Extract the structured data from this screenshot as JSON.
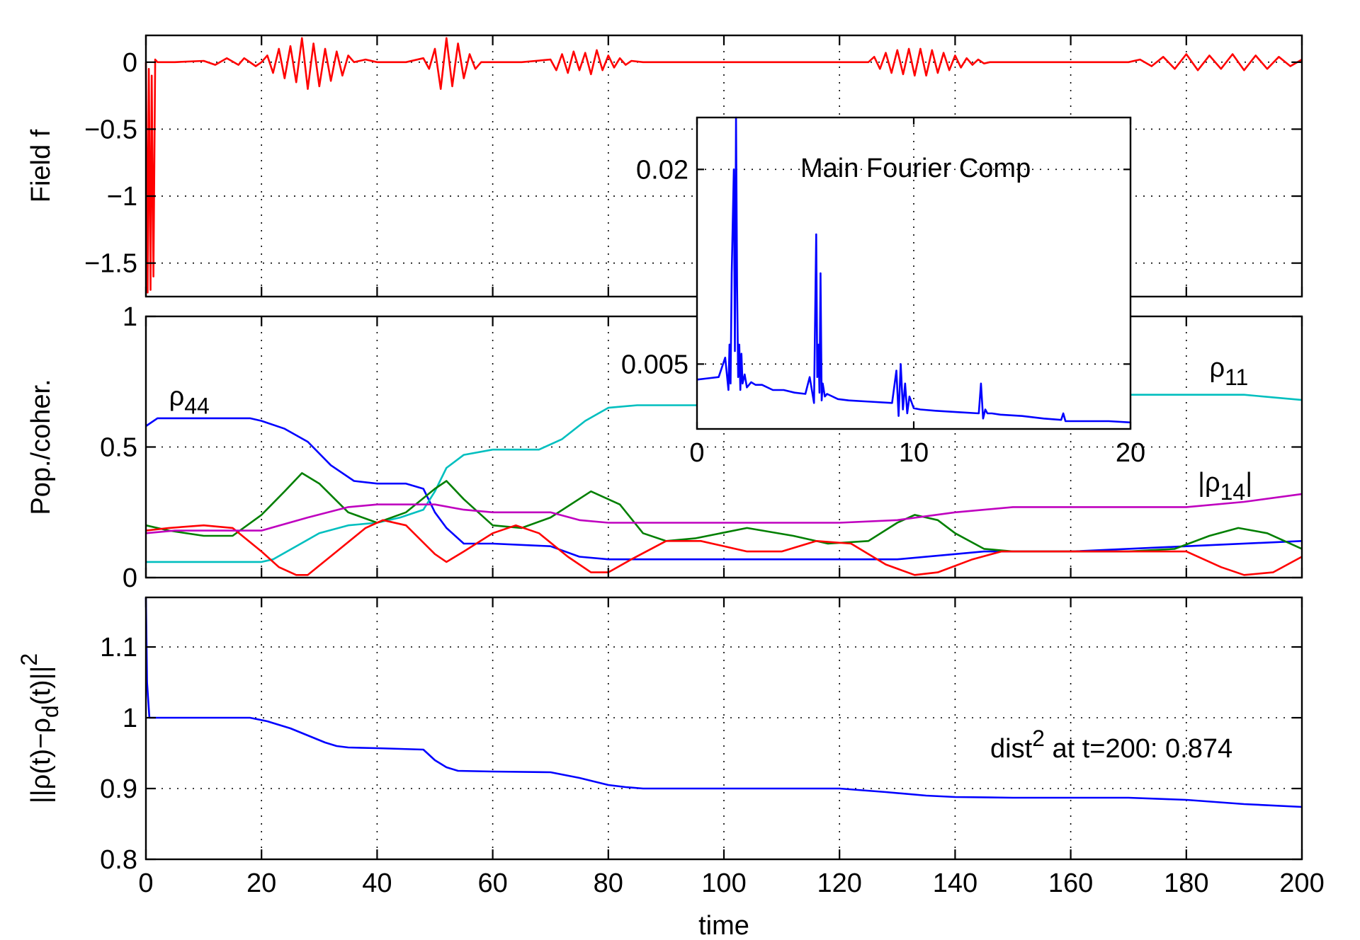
{
  "chart_data": [
    {
      "id": "field",
      "type": "line",
      "ylabel": "Field f",
      "xlim": [
        0,
        200
      ],
      "ylim": [
        -1.75,
        0.2
      ],
      "yticks": [
        0,
        -0.5,
        -1,
        -1.5
      ],
      "ytick_labels": [
        "0",
        "−0.5",
        "−1",
        "−1.5"
      ],
      "xticks": [
        0,
        20,
        40,
        60,
        80,
        100,
        120,
        140,
        160,
        180,
        200
      ],
      "grid": true,
      "series": [
        {
          "color": "#ff0000",
          "x": [
            0,
            0.3,
            0.5,
            0.8,
            1.0,
            1.3,
            1.6,
            2.0,
            5,
            10,
            12,
            14,
            16,
            17,
            19,
            20,
            21,
            22,
            23,
            24,
            25,
            26,
            27,
            28,
            29,
            30,
            31,
            32,
            33,
            34,
            35,
            36,
            38,
            40,
            45,
            48,
            49,
            50,
            51,
            52,
            53,
            54,
            55,
            56,
            57,
            58,
            60,
            65,
            70,
            71,
            72,
            73,
            74,
            75,
            76,
            77,
            78,
            79,
            80,
            81,
            82,
            83,
            84,
            86,
            90,
            100,
            110,
            120,
            125,
            126,
            127,
            128,
            129,
            130,
            131,
            132,
            133,
            134,
            135,
            136,
            137,
            138,
            139,
            140,
            141,
            142,
            143,
            144,
            145,
            146,
            148,
            150,
            160,
            170,
            172,
            174,
            176,
            178,
            180,
            182,
            184,
            186,
            188,
            190,
            192,
            194,
            196,
            198,
            200
          ],
          "y": [
            0,
            -1.72,
            -0.05,
            -1.7,
            -0.1,
            -1.6,
            0.02,
            0,
            0,
            0.01,
            -0.02,
            0.03,
            -0.02,
            0.03,
            -0.03,
            0,
            0.05,
            -0.08,
            0.1,
            -0.12,
            0.12,
            -0.15,
            0.18,
            -0.2,
            0.14,
            -0.18,
            0.1,
            -0.14,
            0.08,
            -0.1,
            0.05,
            0,
            0.02,
            0,
            0,
            0.03,
            -0.05,
            0.1,
            -0.2,
            0.18,
            -0.18,
            0.14,
            -0.12,
            0.06,
            -0.05,
            0,
            0,
            0,
            0.02,
            -0.06,
            0.06,
            -0.08,
            0.08,
            -0.06,
            0.07,
            -0.09,
            0.09,
            -0.06,
            0.05,
            -0.04,
            0.03,
            -0.02,
            0.01,
            0,
            0,
            0,
            0,
            0,
            0,
            0.04,
            -0.05,
            0.07,
            -0.08,
            0.09,
            -0.09,
            0.1,
            -0.1,
            0.1,
            -0.1,
            0.09,
            -0.08,
            0.07,
            -0.06,
            0.05,
            -0.04,
            0.03,
            -0.02,
            0.02,
            -0.01,
            0,
            0,
            0,
            0,
            0,
            0.02,
            -0.03,
            0.04,
            -0.05,
            0.06,
            -0.06,
            0.05,
            -0.05,
            0.06,
            -0.06,
            0.05,
            -0.05,
            0.04,
            -0.03,
            0.02
          ]
        }
      ]
    },
    {
      "id": "pop",
      "type": "line",
      "ylabel": "Pop./coher.",
      "xlim": [
        0,
        200
      ],
      "ylim": [
        0,
        1
      ],
      "yticks": [
        0,
        0.5,
        1
      ],
      "ytick_labels": [
        "0",
        "0.5",
        "1"
      ],
      "xticks": [
        0,
        20,
        40,
        60,
        80,
        100,
        120,
        140,
        160,
        180,
        200
      ],
      "grid": true,
      "labels": {
        "rho44": {
          "main": "ρ",
          "sub": "44",
          "x": 4,
          "y": 0.66
        },
        "rho11": {
          "main": "ρ",
          "sub": "11",
          "x": 184,
          "y": 0.77
        },
        "rho14": {
          "pre": "|ρ",
          "sub": "14",
          "post": "|",
          "x": 182,
          "y": 0.33
        }
      },
      "series": [
        {
          "color": "#0000ff",
          "x": [
            0,
            2,
            5,
            18,
            20,
            24,
            28,
            32,
            36,
            40,
            45,
            48,
            50,
            52,
            55,
            60,
            70,
            75,
            80,
            85,
            100,
            120,
            130,
            140,
            145,
            160,
            180,
            200
          ],
          "y": [
            0.58,
            0.61,
            0.61,
            0.61,
            0.6,
            0.57,
            0.52,
            0.43,
            0.37,
            0.36,
            0.36,
            0.34,
            0.25,
            0.19,
            0.13,
            0.13,
            0.12,
            0.08,
            0.07,
            0.07,
            0.07,
            0.07,
            0.07,
            0.09,
            0.1,
            0.1,
            0.12,
            0.14
          ]
        },
        {
          "color": "#00bfbf",
          "x": [
            0,
            5,
            20,
            22,
            26,
            30,
            35,
            40,
            44,
            48,
            50,
            52,
            55,
            60,
            68,
            72,
            76,
            80,
            85,
            90,
            100,
            110,
            120,
            130,
            140,
            150,
            160,
            170,
            180,
            190,
            200
          ],
          "y": [
            0.06,
            0.06,
            0.06,
            0.07,
            0.12,
            0.17,
            0.2,
            0.21,
            0.23,
            0.26,
            0.33,
            0.42,
            0.47,
            0.49,
            0.49,
            0.53,
            0.6,
            0.65,
            0.66,
            0.66,
            0.66,
            0.67,
            0.68,
            0.69,
            0.69,
            0.7,
            0.7,
            0.7,
            0.7,
            0.7,
            0.68
          ]
        },
        {
          "color": "#007f00",
          "x": [
            0,
            4,
            10,
            15,
            20,
            24,
            27,
            30,
            35,
            40,
            45,
            50,
            52,
            55,
            60,
            65,
            70,
            77,
            82,
            86,
            90,
            95,
            104,
            112,
            118,
            125,
            130,
            133,
            137,
            140,
            145,
            150,
            160,
            170,
            178,
            184,
            189,
            194,
            200
          ],
          "y": [
            0.2,
            0.18,
            0.16,
            0.16,
            0.24,
            0.33,
            0.4,
            0.36,
            0.25,
            0.21,
            0.25,
            0.34,
            0.37,
            0.3,
            0.2,
            0.19,
            0.23,
            0.33,
            0.28,
            0.17,
            0.14,
            0.15,
            0.19,
            0.16,
            0.13,
            0.14,
            0.21,
            0.24,
            0.22,
            0.17,
            0.11,
            0.1,
            0.1,
            0.1,
            0.11,
            0.16,
            0.19,
            0.17,
            0.11
          ]
        },
        {
          "color": "#ff0000",
          "x": [
            0,
            4,
            10,
            15,
            20,
            23,
            26,
            28,
            33,
            38,
            41,
            45,
            50,
            52,
            55,
            60,
            64,
            68,
            73,
            77,
            80,
            84,
            90,
            96,
            104,
            110,
            116,
            122,
            128,
            133,
            137,
            143,
            148,
            160,
            170,
            180,
            186,
            190,
            195,
            200
          ],
          "y": [
            0.18,
            0.19,
            0.2,
            0.19,
            0.1,
            0.04,
            0.01,
            0.01,
            0.1,
            0.19,
            0.22,
            0.2,
            0.09,
            0.06,
            0.1,
            0.17,
            0.2,
            0.17,
            0.08,
            0.02,
            0.02,
            0.07,
            0.14,
            0.14,
            0.1,
            0.1,
            0.14,
            0.13,
            0.05,
            0.01,
            0.02,
            0.07,
            0.1,
            0.1,
            0.1,
            0.1,
            0.04,
            0.01,
            0.02,
            0.08
          ]
        },
        {
          "color": "#bf00bf",
          "x": [
            0,
            5,
            10,
            20,
            28,
            35,
            40,
            45,
            50,
            55,
            60,
            70,
            75,
            80,
            90,
            100,
            110,
            120,
            130,
            140,
            150,
            160,
            170,
            180,
            190,
            200
          ],
          "y": [
            0.17,
            0.18,
            0.18,
            0.18,
            0.23,
            0.27,
            0.28,
            0.28,
            0.28,
            0.26,
            0.25,
            0.25,
            0.22,
            0.21,
            0.21,
            0.21,
            0.21,
            0.21,
            0.22,
            0.25,
            0.27,
            0.27,
            0.27,
            0.27,
            0.29,
            0.32
          ]
        }
      ]
    },
    {
      "id": "dist",
      "type": "line",
      "ylabel": "||ρ(t)−ρ_d(t)||^2",
      "xlabel": "time",
      "xlim": [
        0,
        200
      ],
      "ylim": [
        0.8,
        1.17
      ],
      "yticks": [
        0.8,
        0.9,
        1,
        1.1
      ],
      "ytick_labels": [
        "0.8",
        "0.9",
        "1",
        "1.1"
      ],
      "xticks": [
        0,
        20,
        40,
        60,
        80,
        100,
        120,
        140,
        160,
        180,
        200
      ],
      "xtick_labels": [
        "0",
        "20",
        "40",
        "60",
        "80",
        "100",
        "120",
        "140",
        "160",
        "180",
        "200"
      ],
      "grid": true,
      "annotation": {
        "pre": "dist",
        "sup": "2",
        "post": " at t=200: 0.874"
      },
      "series": [
        {
          "color": "#0000ff",
          "x": [
            0,
            0.2,
            0.6,
            1,
            18,
            21,
            25,
            28,
            31,
            33,
            35,
            40,
            48,
            50,
            52,
            54,
            60,
            70,
            75,
            80,
            83,
            86,
            100,
            120,
            128,
            135,
            140,
            150,
            160,
            170,
            180,
            190,
            200
          ],
          "y": [
            1.17,
            1.05,
            1.0,
            1.0,
            1.0,
            0.995,
            0.985,
            0.975,
            0.965,
            0.96,
            0.958,
            0.957,
            0.955,
            0.94,
            0.93,
            0.925,
            0.924,
            0.923,
            0.915,
            0.905,
            0.902,
            0.9,
            0.9,
            0.9,
            0.895,
            0.89,
            0.888,
            0.887,
            0.887,
            0.887,
            0.884,
            0.878,
            0.874
          ]
        }
      ]
    },
    {
      "id": "inset",
      "type": "line",
      "title": "Main Fourier Comp",
      "xlim": [
        0,
        20
      ],
      "ylim": [
        0,
        0.024
      ],
      "yticks": [
        0.005,
        0.02
      ],
      "ytick_labels": [
        "0.005",
        "0.02"
      ],
      "xticks": [
        0,
        10,
        20
      ],
      "xtick_labels": [
        "0",
        "10",
        "20"
      ],
      "grid": true,
      "series": [
        {
          "color": "#0000ff",
          "x": [
            0,
            0.5,
            1.0,
            1.3,
            1.45,
            1.5,
            1.55,
            1.6,
            1.7,
            1.75,
            1.8,
            1.85,
            1.9,
            1.95,
            2.0,
            2.05,
            2.1,
            2.2,
            2.3,
            2.5,
            2.7,
            3.0,
            3.5,
            4,
            4.5,
            5.0,
            5.2,
            5.4,
            5.5,
            5.55,
            5.6,
            5.65,
            5.7,
            5.75,
            5.8,
            5.9,
            6.0,
            6.5,
            7,
            8,
            9.0,
            9.2,
            9.3,
            9.4,
            9.5,
            9.6,
            9.7,
            9.8,
            10,
            10.3,
            11,
            12,
            13,
            13.1,
            13.2,
            13.3,
            13.4,
            13.6,
            14,
            15,
            16,
            16.8,
            16.9,
            17,
            18,
            19,
            20
          ],
          "y": [
            0.0038,
            0.0039,
            0.004,
            0.0055,
            0.003,
            0.0065,
            0.0035,
            0.012,
            0.02,
            0.006,
            0.0245,
            0.011,
            0.004,
            0.0065,
            0.003,
            0.0058,
            0.0035,
            0.0042,
            0.0032,
            0.0036,
            0.0034,
            0.0034,
            0.003,
            0.003,
            0.0028,
            0.0027,
            0.004,
            0.002,
            0.015,
            0.004,
            0.0065,
            0.0028,
            0.012,
            0.0022,
            0.0035,
            0.0025,
            0.0027,
            0.0023,
            0.0022,
            0.0021,
            0.002,
            0.0045,
            0.001,
            0.005,
            0.0015,
            0.0035,
            0.0012,
            0.0025,
            0.0016,
            0.0015,
            0.0014,
            0.0013,
            0.0012,
            0.0035,
            0.0008,
            0.0015,
            0.0012,
            0.0012,
            0.0011,
            0.001,
            0.0008,
            0.0007,
            0.0012,
            0.0006,
            0.0006,
            0.0006,
            0.0005
          ]
        }
      ]
    }
  ]
}
